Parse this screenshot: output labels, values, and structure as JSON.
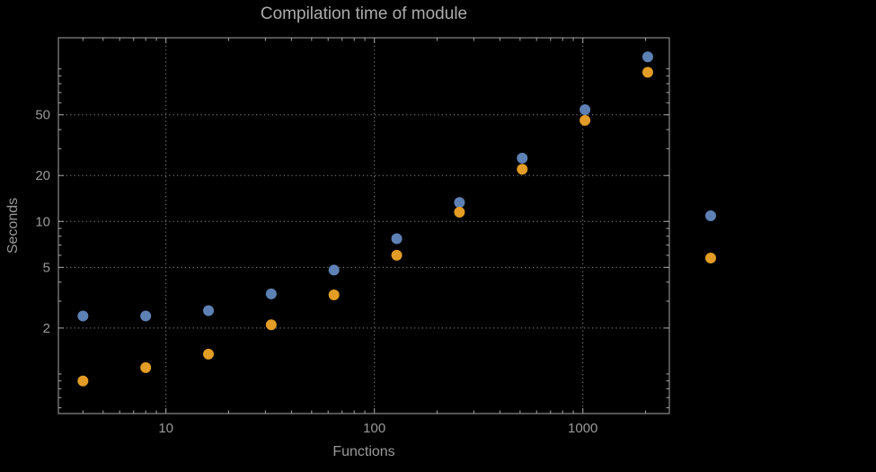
{
  "figure": {
    "background": "#000000"
  },
  "colors": {
    "series_blue": "#5e81b5",
    "series_orange": "#e39c25",
    "grid": "#8a8a8a",
    "frame": "#a6a6a6",
    "tick_text": "#9a9a9a",
    "title_text": "#ababab"
  },
  "chart_data": {
    "type": "scatter",
    "title": "Compilation time of module",
    "xlabel": "Functions",
    "ylabel": "Seconds",
    "xscale": "log",
    "yscale": "log",
    "xlim": [
      3.05,
      2600
    ],
    "ylim": [
      0.55,
      160
    ],
    "xticks": [
      10,
      100,
      1000
    ],
    "yticks": [
      2,
      5,
      10,
      20,
      50
    ],
    "grid": "dotted",
    "x": [
      4,
      8,
      16,
      32,
      64,
      128,
      256,
      512,
      1024,
      2048
    ],
    "series": [
      {
        "color": "#5e81b5",
        "marker": "circle",
        "values": [
          2.4,
          2.4,
          2.6,
          3.35,
          4.8,
          7.7,
          13.3,
          26,
          54,
          120
        ]
      },
      {
        "color": "#e39c25",
        "marker": "circle",
        "values": [
          0.9,
          1.1,
          1.35,
          2.1,
          3.3,
          6.0,
          11.5,
          22,
          46,
          95
        ]
      }
    ],
    "legend": {
      "position": "right-outside",
      "labels_visible": false,
      "items": [
        {
          "color": "#5e81b5"
        },
        {
          "color": "#e39c25"
        }
      ]
    }
  }
}
